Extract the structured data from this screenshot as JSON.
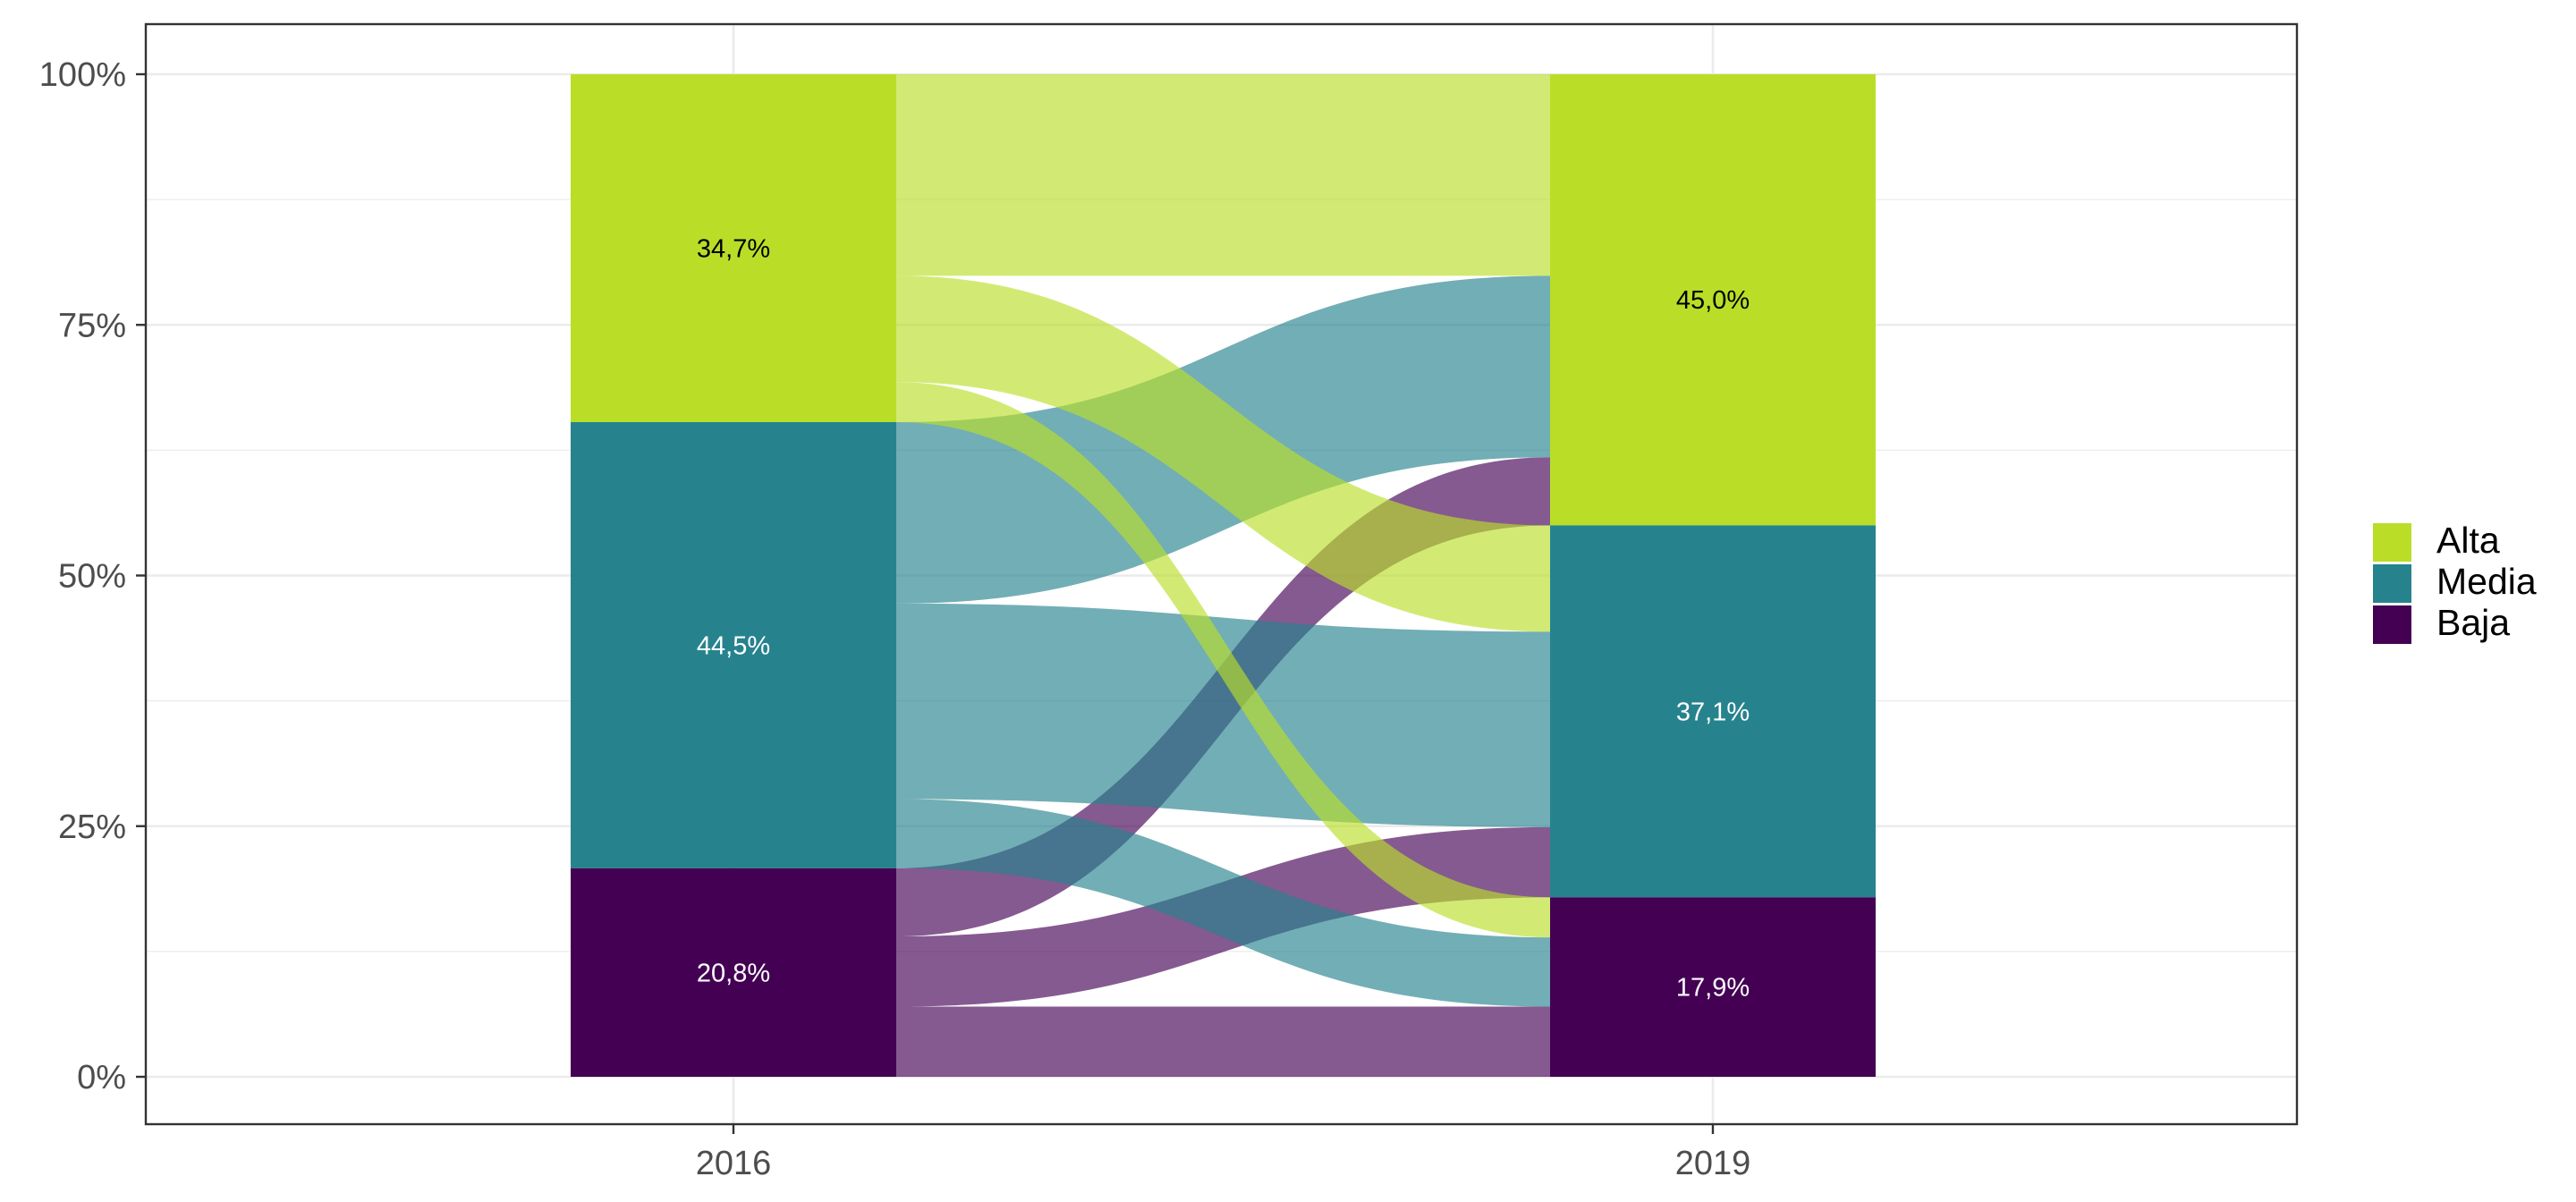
{
  "chart_data": {
    "type": "alluvial",
    "x": [
      "2016",
      "2019"
    ],
    "y_ticks": [
      "0%",
      "25%",
      "50%",
      "75%",
      "100%"
    ],
    "ylim": [
      0,
      1
    ],
    "grid": true,
    "legend_position": "right",
    "categories": [
      "Alta",
      "Media",
      "Baja"
    ],
    "colors": {
      "Alta": "#bade28",
      "Media": "#26838e",
      "Baja": "#440154"
    },
    "stacks": {
      "2016": [
        {
          "category": "Alta",
          "value": 0.347,
          "label": "34,7%"
        },
        {
          "category": "Media",
          "value": 0.445,
          "label": "44,5%"
        },
        {
          "category": "Baja",
          "value": 0.208,
          "label": "20,8%"
        }
      ],
      "2019": [
        {
          "category": "Alta",
          "value": 0.45,
          "label": "45,0%"
        },
        {
          "category": "Media",
          "value": 0.371,
          "label": "37,1%"
        },
        {
          "category": "Baja",
          "value": 0.179,
          "label": "17,9%"
        }
      ]
    },
    "flows": [
      {
        "from": "Alta",
        "to": "Alta",
        "value": 0.201
      },
      {
        "from": "Alta",
        "to": "Media",
        "value": 0.106
      },
      {
        "from": "Alta",
        "to": "Baja",
        "value": 0.04
      },
      {
        "from": "Media",
        "to": "Alta",
        "value": 0.181
      },
      {
        "from": "Media",
        "to": "Media",
        "value": 0.195
      },
      {
        "from": "Media",
        "to": "Baja",
        "value": 0.069
      },
      {
        "from": "Baja",
        "to": "Alta",
        "value": 0.068
      },
      {
        "from": "Baja",
        "to": "Media",
        "value": 0.07
      },
      {
        "from": "Baja",
        "to": "Baja",
        "value": 0.07
      }
    ]
  }
}
